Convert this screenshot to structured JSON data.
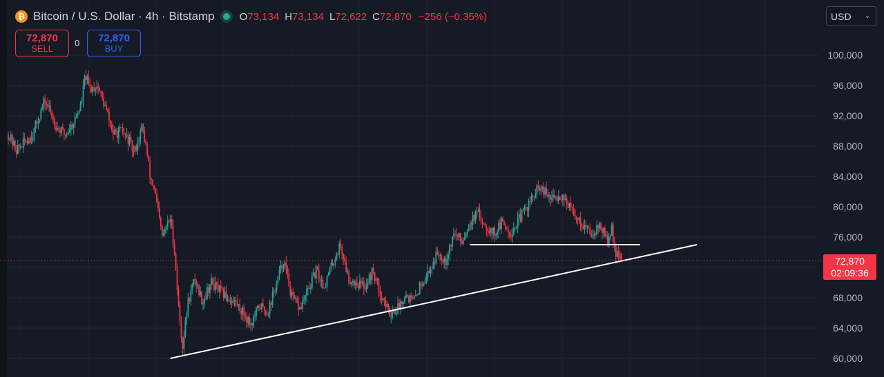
{
  "header": {
    "title": "Bitcoin / U.S. Dollar · 4h · Bitstamp",
    "ohlc": [
      {
        "label": "O",
        "value": "73,134"
      },
      {
        "label": "H",
        "value": "73,134"
      },
      {
        "label": "L",
        "value": "72,622"
      },
      {
        "label": "C",
        "value": "72,870"
      }
    ],
    "change": "−256 (−0.35%)"
  },
  "trade": {
    "sell_price": "72,870",
    "sell_label": "SELL",
    "spread": "0",
    "buy_price": "72,870",
    "buy_label": "BUY"
  },
  "currency": "USD",
  "last_price": {
    "price": "72,870",
    "countdown": "02:09:36"
  },
  "colors": {
    "background": "#161a25",
    "up": "#26a69a",
    "down": "#f23645",
    "accent": "#2962ff",
    "trendline": "#ffffff"
  },
  "chart_data": {
    "type": "candlestick",
    "interval": "4h",
    "ylim": [
      58500,
      103500
    ],
    "yticks": [
      60000,
      64000,
      68000,
      72000,
      76000,
      80000,
      84000,
      88000,
      92000,
      96000,
      100000
    ],
    "ytick_labels": [
      "60,000",
      "64,000",
      "68,000",
      "72,000",
      "76,000",
      "80,000",
      "84,000",
      "88,000",
      "92,000",
      "96,000",
      "100,000"
    ],
    "last_price": 72870,
    "price_path": [
      [
        0,
        89500
      ],
      [
        0.01,
        87500
      ],
      [
        0.02,
        88500
      ],
      [
        0.03,
        89500
      ],
      [
        0.04,
        92500
      ],
      [
        0.045,
        94000
      ],
      [
        0.05,
        93000
      ],
      [
        0.06,
        90500
      ],
      [
        0.07,
        89500
      ],
      [
        0.08,
        91000
      ],
      [
        0.09,
        93500
      ],
      [
        0.095,
        97500
      ],
      [
        0.1,
        95500
      ],
      [
        0.11,
        96000
      ],
      [
        0.12,
        93000
      ],
      [
        0.13,
        89500
      ],
      [
        0.14,
        90000
      ],
      [
        0.15,
        88500
      ],
      [
        0.155,
        87000
      ],
      [
        0.165,
        90500
      ],
      [
        0.17,
        88000
      ],
      [
        0.175,
        84000
      ],
      [
        0.18,
        82500
      ],
      [
        0.19,
        76000
      ],
      [
        0.2,
        78500
      ],
      [
        0.205,
        74500
      ],
      [
        0.21,
        67000
      ],
      [
        0.215,
        61500
      ],
      [
        0.222,
        67500
      ],
      [
        0.23,
        70500
      ],
      [
        0.24,
        67500
      ],
      [
        0.25,
        70000
      ],
      [
        0.26,
        69000
      ],
      [
        0.27,
        68000
      ],
      [
        0.28,
        67500
      ],
      [
        0.29,
        66000
      ],
      [
        0.3,
        64500
      ],
      [
        0.31,
        67000
      ],
      [
        0.32,
        66000
      ],
      [
        0.33,
        69500
      ],
      [
        0.34,
        73000
      ],
      [
        0.35,
        68000
      ],
      [
        0.36,
        66500
      ],
      [
        0.37,
        69000
      ],
      [
        0.38,
        71500
      ],
      [
        0.39,
        69500
      ],
      [
        0.4,
        72500
      ],
      [
        0.41,
        75000
      ],
      [
        0.42,
        70500
      ],
      [
        0.43,
        70000
      ],
      [
        0.44,
        69500
      ],
      [
        0.45,
        71500
      ],
      [
        0.46,
        68500
      ],
      [
        0.47,
        66000
      ],
      [
        0.48,
        66500
      ],
      [
        0.49,
        68500
      ],
      [
        0.5,
        67500
      ],
      [
        0.51,
        70000
      ],
      [
        0.52,
        71500
      ],
      [
        0.53,
        74000
      ],
      [
        0.54,
        73000
      ],
      [
        0.55,
        76500
      ],
      [
        0.56,
        75500
      ],
      [
        0.57,
        78000
      ],
      [
        0.58,
        79000
      ],
      [
        0.59,
        77500
      ],
      [
        0.6,
        76500
      ],
      [
        0.61,
        78000
      ],
      [
        0.62,
        76500
      ],
      [
        0.64,
        80000
      ],
      [
        0.655,
        82500
      ],
      [
        0.67,
        81000
      ],
      [
        0.685,
        81500
      ],
      [
        0.695,
        79500
      ],
      [
        0.71,
        77500
      ],
      [
        0.72,
        76500
      ],
      [
        0.73,
        77500
      ],
      [
        0.74,
        75500
      ],
      [
        0.745,
        77000
      ],
      [
        0.75,
        73900
      ],
      [
        0.755,
        72870
      ]
    ],
    "trendline": {
      "from": [
        0.2,
        60000
      ],
      "to": [
        0.85,
        75000
      ]
    },
    "resistance_line": {
      "from": [
        0.57,
        75000
      ],
      "to": [
        0.78,
        75000
      ]
    }
  }
}
